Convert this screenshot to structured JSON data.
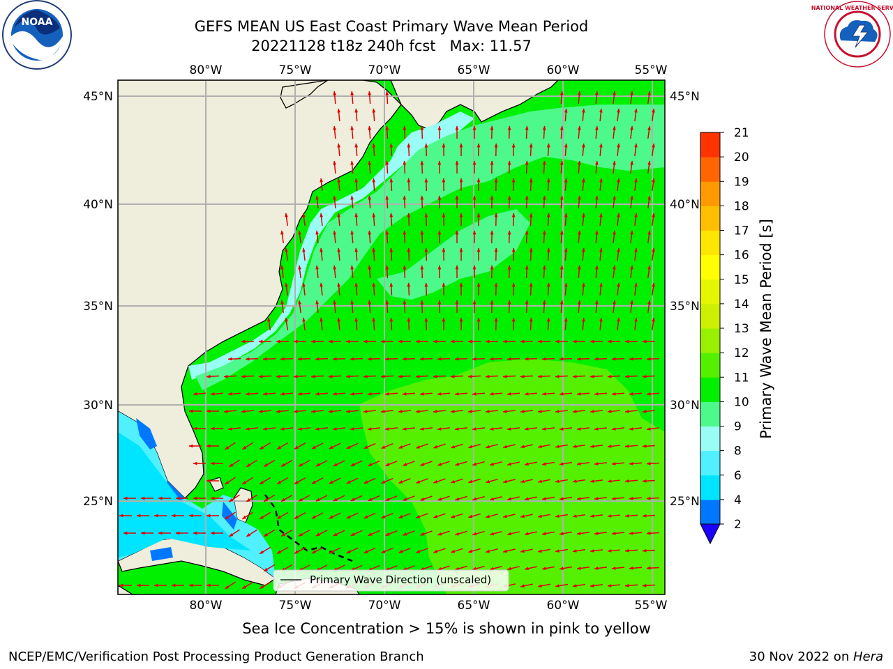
{
  "title": {
    "line1": "GEFS MEAN US East Coast Primary Wave Mean Period",
    "line2_a": "20221128 t18z 240h fcst",
    "line2_b": "Max: 11.57"
  },
  "map": {
    "lon_range": [
      -85,
      -54
    ],
    "lat_range": [
      20.5,
      46
    ],
    "lon_ticks": [
      "80°W",
      "75°W",
      "70°W",
      "65°W",
      "60°W",
      "55°W"
    ],
    "lat_ticks": [
      "45°N",
      "40°N",
      "35°N",
      "30°N",
      "25°N"
    ],
    "legend_label": "Primary Wave Direction (unscaled)",
    "land_color": "#efeddb",
    "vector_color": "#e00000"
  },
  "colorbar": {
    "title": "Primary Wave Mean Period [s]",
    "levels": [
      "2",
      "4",
      "6",
      "8",
      "9",
      "10",
      "11",
      "12",
      "13",
      "14",
      "15",
      "16",
      "17",
      "18",
      "19",
      "20",
      "21"
    ],
    "colors": [
      "#0077ff",
      "#00e5ff",
      "#50f0ff",
      "#99fdf5",
      "#4df98a",
      "#00f000",
      "#55f000",
      "#99f000",
      "#ccf000",
      "#e6f500",
      "#ffff00",
      "#ffe600",
      "#ffbf00",
      "#ff9900",
      "#ff6600",
      "#ff3300",
      "#ff0000"
    ],
    "under_color": "#1a00ff"
  },
  "subtitle": "Sea Ice Concentration > 15% is shown in pink to yellow",
  "footer": {
    "left": "NCEP/EMC/Verification Post Processing Product Generation Branch",
    "date": "30 Nov 2022 on ",
    "machine": "Hera"
  },
  "logos": {
    "noaa": "NOAA",
    "nws": "NATIONAL WEATHER SERVICE"
  }
}
